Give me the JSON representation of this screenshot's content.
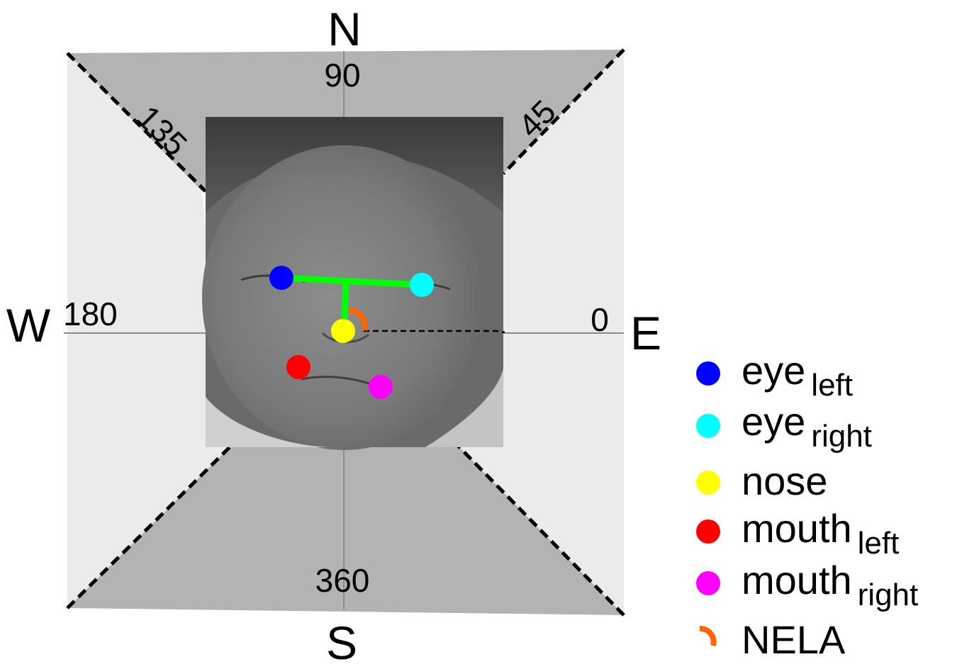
{
  "compass": {
    "north": "N",
    "south": "S",
    "east": "E",
    "west": "W"
  },
  "angles": {
    "a0": "0",
    "a45": "45",
    "a90": "90",
    "a135": "135",
    "a180": "180",
    "a360": "360"
  },
  "colors": {
    "eye_left": "#0000ff",
    "eye_right": "#00ffff",
    "nose": "#ffff00",
    "mouth_left": "#ff0000",
    "mouth_right": "#ff00ff",
    "nela": "#ff6600",
    "face_axis": "#00ff00",
    "dark_sector": "#b3b3b3",
    "light_sector": "#ebebeb"
  },
  "legend": [
    {
      "key": "eye_left",
      "label": "eye",
      "sub": "left",
      "marker": "dot"
    },
    {
      "key": "eye_right",
      "label": "eye",
      "sub": "right",
      "marker": "dot"
    },
    {
      "key": "nose",
      "label": "nose",
      "sub": "",
      "marker": "dot"
    },
    {
      "key": "mouth_left",
      "label": "mouth",
      "sub": "left",
      "marker": "dot"
    },
    {
      "key": "mouth_right",
      "label": "mouth",
      "sub": "right",
      "marker": "dot"
    },
    {
      "key": "nela",
      "label": "NELA",
      "sub": "",
      "marker": "arc"
    }
  ]
}
